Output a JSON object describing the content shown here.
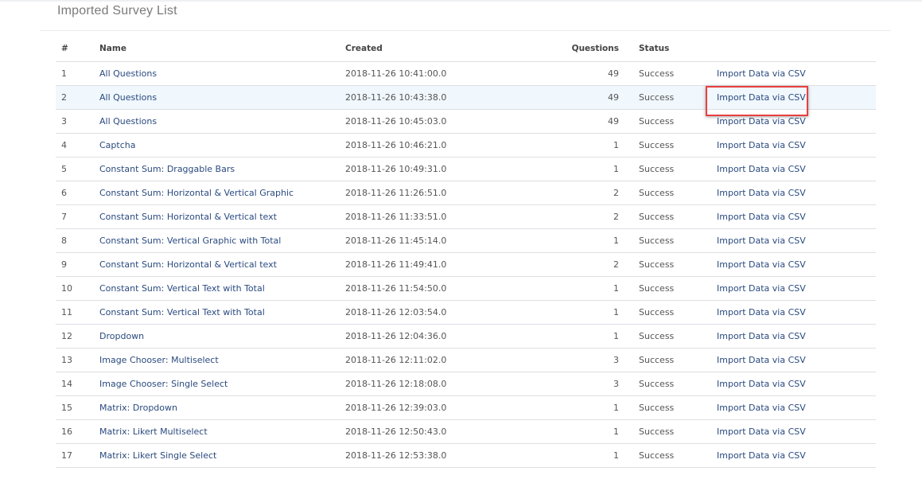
{
  "page": {
    "title": "Imported Survey List"
  },
  "table": {
    "headers": [
      "#",
      "Name",
      "Created",
      "Questions",
      "Status",
      ""
    ],
    "action_label": "Import Data via CSV",
    "highlighted_row": 2,
    "highlight_color": "#e8403f",
    "rows": [
      {
        "n": "1",
        "name": "All Questions",
        "created": "2018-11-26 10:41:00.0",
        "questions": "49",
        "status": "Success"
      },
      {
        "n": "2",
        "name": "All Questions",
        "created": "2018-11-26 10:43:38.0",
        "questions": "49",
        "status": "Success"
      },
      {
        "n": "3",
        "name": "All Questions",
        "created": "2018-11-26 10:45:03.0",
        "questions": "49",
        "status": "Success"
      },
      {
        "n": "4",
        "name": "Captcha",
        "created": "2018-11-26 10:46:21.0",
        "questions": "1",
        "status": "Success"
      },
      {
        "n": "5",
        "name": "Constant Sum: Draggable Bars",
        "created": "2018-11-26 10:49:31.0",
        "questions": "1",
        "status": "Success"
      },
      {
        "n": "6",
        "name": "Constant Sum: Horizontal & Vertical Graphic",
        "created": "2018-11-26 11:26:51.0",
        "questions": "2",
        "status": "Success"
      },
      {
        "n": "7",
        "name": "Constant Sum: Horizontal & Vertical text",
        "created": "2018-11-26 11:33:51.0",
        "questions": "2",
        "status": "Success"
      },
      {
        "n": "8",
        "name": "Constant Sum: Vertical Graphic with Total",
        "created": "2018-11-26 11:45:14.0",
        "questions": "1",
        "status": "Success"
      },
      {
        "n": "9",
        "name": "Constant Sum: Horizontal & Vertical text",
        "created": "2018-11-26 11:49:41.0",
        "questions": "2",
        "status": "Success"
      },
      {
        "n": "10",
        "name": "Constant Sum: Vertical Text with Total",
        "created": "2018-11-26 11:54:50.0",
        "questions": "1",
        "status": "Success"
      },
      {
        "n": "11",
        "name": "Constant Sum: Vertical Text with Total",
        "created": "2018-11-26 12:03:54.0",
        "questions": "1",
        "status": "Success"
      },
      {
        "n": "12",
        "name": "Dropdown",
        "created": "2018-11-26 12:04:36.0",
        "questions": "1",
        "status": "Success"
      },
      {
        "n": "13",
        "name": "Image Chooser: Multiselect",
        "created": "2018-11-26 12:11:02.0",
        "questions": "3",
        "status": "Success"
      },
      {
        "n": "14",
        "name": "Image Chooser: Single Select",
        "created": "2018-11-26 12:18:08.0",
        "questions": "3",
        "status": "Success"
      },
      {
        "n": "15",
        "name": "Matrix: Dropdown",
        "created": "2018-11-26 12:39:03.0",
        "questions": "1",
        "status": "Success"
      },
      {
        "n": "16",
        "name": "Matrix: Likert Multiselect",
        "created": "2018-11-26 12:50:43.0",
        "questions": "1",
        "status": "Success"
      },
      {
        "n": "17",
        "name": "Matrix: Likert Single Select",
        "created": "2018-11-26 12:53:38.0",
        "questions": "1",
        "status": "Success"
      }
    ]
  }
}
